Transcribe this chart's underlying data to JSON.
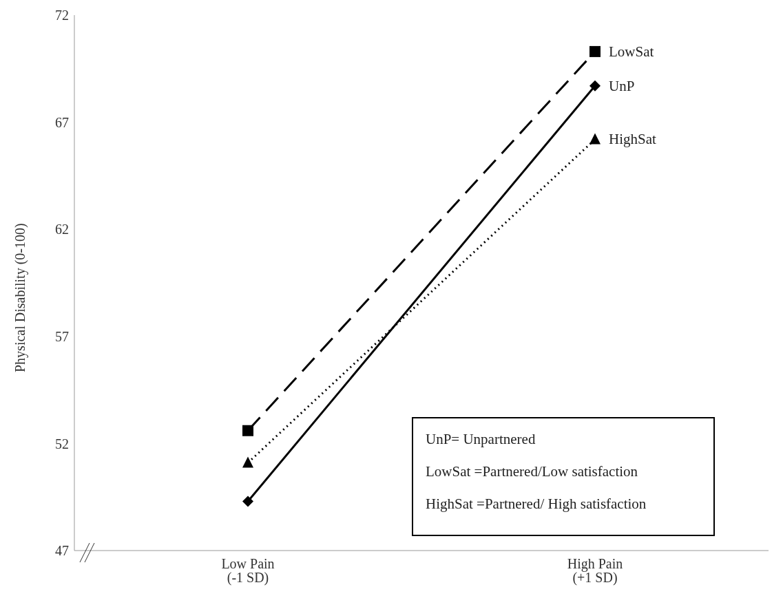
{
  "chart_data": {
    "type": "line",
    "ylabel": "Physical Disability  (0-100)",
    "categories": [
      "Low Pain\n(-1 SD)",
      "High Pain\n(+1 SD)"
    ],
    "series": [
      {
        "name": "LowSat",
        "color": "#000000",
        "values": [
          52.6,
          70.3
        ],
        "marker": "square",
        "line_style": "dashed"
      },
      {
        "name": "UnP",
        "color": "#000000",
        "values": [
          49.3,
          68.7
        ],
        "marker": "diamond",
        "line_style": "solid"
      },
      {
        "name": "HighSat",
        "color": "#000000",
        "values": [
          51.1,
          66.2
        ],
        "marker": "triangle",
        "line_style": "dotted"
      }
    ],
    "ylim": [
      47,
      72
    ],
    "yticks": [
      47,
      52,
      57,
      62,
      67,
      72
    ],
    "grid": false,
    "annotations": [
      "UnP= Unpartnered",
      "LowSat  =Partnered/Low satisfaction",
      "HighSat  =Partnered/ High satisfaction"
    ]
  }
}
